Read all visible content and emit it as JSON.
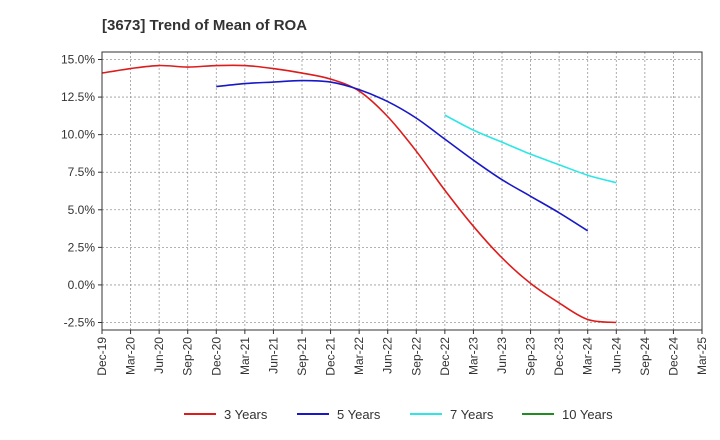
{
  "chart_data": {
    "type": "line",
    "title": "[3673]  Trend of Mean of ROA",
    "xlabel": "",
    "ylabel": "",
    "ylim": [
      -3.0,
      15.5
    ],
    "y_ticks": [
      15.0,
      12.5,
      10.0,
      7.5,
      5.0,
      2.5,
      0.0,
      -2.5
    ],
    "y_tick_labels": [
      "15.0%",
      "12.5%",
      "10.0%",
      "7.5%",
      "5.0%",
      "2.5%",
      "0.0%",
      "-2.5%"
    ],
    "x_tick_labels": [
      "Dec-19",
      "Mar-20",
      "Jun-20",
      "Sep-20",
      "Dec-20",
      "Mar-21",
      "Jun-21",
      "Sep-21",
      "Dec-21",
      "Mar-22",
      "Jun-22",
      "Sep-22",
      "Dec-22",
      "Mar-23",
      "Jun-23",
      "Sep-23",
      "Dec-23",
      "Mar-24",
      "Jun-24",
      "Sep-24",
      "Dec-24",
      "Mar-25"
    ],
    "grid": true,
    "legend_position": "bottom",
    "series": [
      {
        "name": "3 Years",
        "color": "#dd1c1c",
        "start_index": 0,
        "values": [
          14.1,
          14.4,
          14.6,
          14.5,
          14.6,
          14.6,
          14.4,
          14.1,
          13.7,
          12.9,
          11.2,
          8.9,
          6.3,
          3.9,
          1.8,
          0.1,
          -1.2,
          -2.3,
          -2.5
        ]
      },
      {
        "name": "5 Years",
        "color": "#1818c8",
        "start_index": 4,
        "values": [
          13.2,
          13.4,
          13.5,
          13.6,
          13.5,
          13.0,
          12.2,
          11.1,
          9.7,
          8.3,
          7.0,
          5.9,
          4.8,
          3.6
        ]
      },
      {
        "name": "7 Years",
        "color": "#2ee6e6",
        "start_index": 12,
        "values": [
          11.3,
          10.3,
          9.5,
          8.7,
          8.0,
          7.3,
          6.8
        ]
      },
      {
        "name": "10 Years",
        "color": "#228b22",
        "start_index": 0,
        "values": []
      }
    ]
  }
}
